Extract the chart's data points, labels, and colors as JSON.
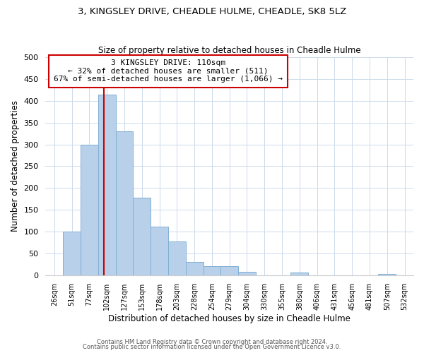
{
  "title": "3, KINGSLEY DRIVE, CHEADLE HULME, CHEADLE, SK8 5LZ",
  "subtitle": "Size of property relative to detached houses in Cheadle Hulme",
  "xlabel": "Distribution of detached houses by size in Cheadle Hulme",
  "ylabel": "Number of detached properties",
  "bin_labels": [
    "26sqm",
    "51sqm",
    "77sqm",
    "102sqm",
    "127sqm",
    "153sqm",
    "178sqm",
    "203sqm",
    "228sqm",
    "254sqm",
    "279sqm",
    "304sqm",
    "330sqm",
    "355sqm",
    "380sqm",
    "406sqm",
    "431sqm",
    "456sqm",
    "481sqm",
    "507sqm",
    "532sqm"
  ],
  "bar_values": [
    0,
    100,
    300,
    415,
    330,
    178,
    112,
    77,
    30,
    20,
    20,
    8,
    0,
    0,
    7,
    0,
    0,
    0,
    0,
    3,
    0
  ],
  "bar_color": "#b8d0ea",
  "bar_edge_color": "#82afd3",
  "property_line_x": 3.32,
  "annotation_title": "3 KINGSLEY DRIVE: 110sqm",
  "annotation_line1": "← 32% of detached houses are smaller (511)",
  "annotation_line2": "67% of semi-detached houses are larger (1,066) →",
  "annotation_box_color": "#ffffff",
  "annotation_box_edge": "#cc0000",
  "vertical_line_color": "#cc0000",
  "ylim": [
    0,
    500
  ],
  "yticks": [
    0,
    50,
    100,
    150,
    200,
    250,
    300,
    350,
    400,
    450,
    500
  ],
  "footer1": "Contains HM Land Registry data © Crown copyright and database right 2024.",
  "footer2": "Contains public sector information licensed under the Open Government Licence v3.0."
}
